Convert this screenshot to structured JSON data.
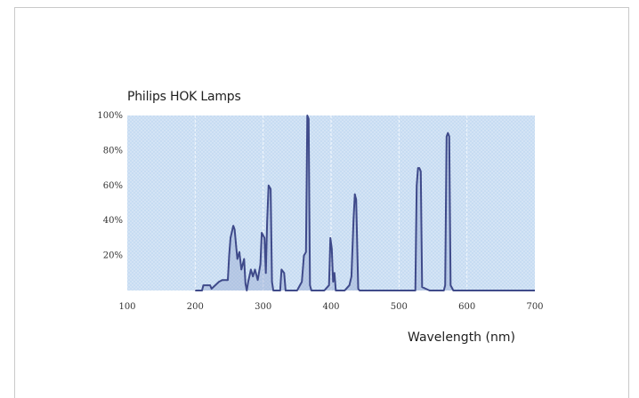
{
  "chart_data": {
    "type": "line",
    "title": "Philips HOK Lamps",
    "xlabel": "Wavelength (nm)",
    "ylabel": "",
    "xlim": [
      100,
      700
    ],
    "ylim": [
      0,
      100
    ],
    "x_ticks": [
      "100",
      "200",
      "300",
      "400",
      "500",
      "600",
      "700"
    ],
    "y_ticks": [
      "20%",
      "40%",
      "60%",
      "80%",
      "100%"
    ],
    "grid": true,
    "series": [
      {
        "x": [
          200,
          210,
          212,
          222,
          224,
          235,
          240,
          248,
          250,
          252,
          256,
          258,
          262,
          265,
          268,
          272,
          274,
          276,
          278,
          282,
          285,
          288,
          292,
          296,
          298,
          302,
          304,
          306,
          308,
          311,
          313,
          315,
          325,
          327,
          331,
          333,
          340,
          350,
          357,
          360,
          363,
          365,
          367,
          369,
          371,
          373,
          378,
          390,
          397,
          399,
          401,
          403,
          405,
          407,
          420,
          427,
          430,
          433,
          435,
          437,
          440,
          442,
          445,
          524,
          526,
          528,
          530,
          532,
          534,
          545,
          563,
          566,
          568,
          570,
          572,
          574,
          576,
          580,
          600,
          700
        ],
        "values": [
          0,
          0,
          3,
          3,
          1,
          5,
          6,
          6,
          20,
          30,
          37,
          35,
          18,
          22,
          12,
          18,
          4,
          0,
          5,
          12,
          8,
          12,
          6,
          15,
          33,
          30,
          10,
          40,
          60,
          58,
          5,
          0,
          0,
          12,
          10,
          0,
          0,
          0,
          5,
          20,
          22,
          100,
          98,
          3,
          0,
          0,
          0,
          0,
          3,
          30,
          24,
          5,
          10,
          0,
          0,
          3,
          8,
          40,
          55,
          52,
          1,
          0,
          0,
          0,
          60,
          70,
          70,
          68,
          2,
          0,
          0,
          0,
          3,
          88,
          90,
          88,
          3,
          0,
          0,
          0
        ]
      }
    ],
    "colors": {
      "plot_bg": "#c7dcf2",
      "line": "#3f4a8a",
      "grid": "#f4f8fd"
    }
  }
}
